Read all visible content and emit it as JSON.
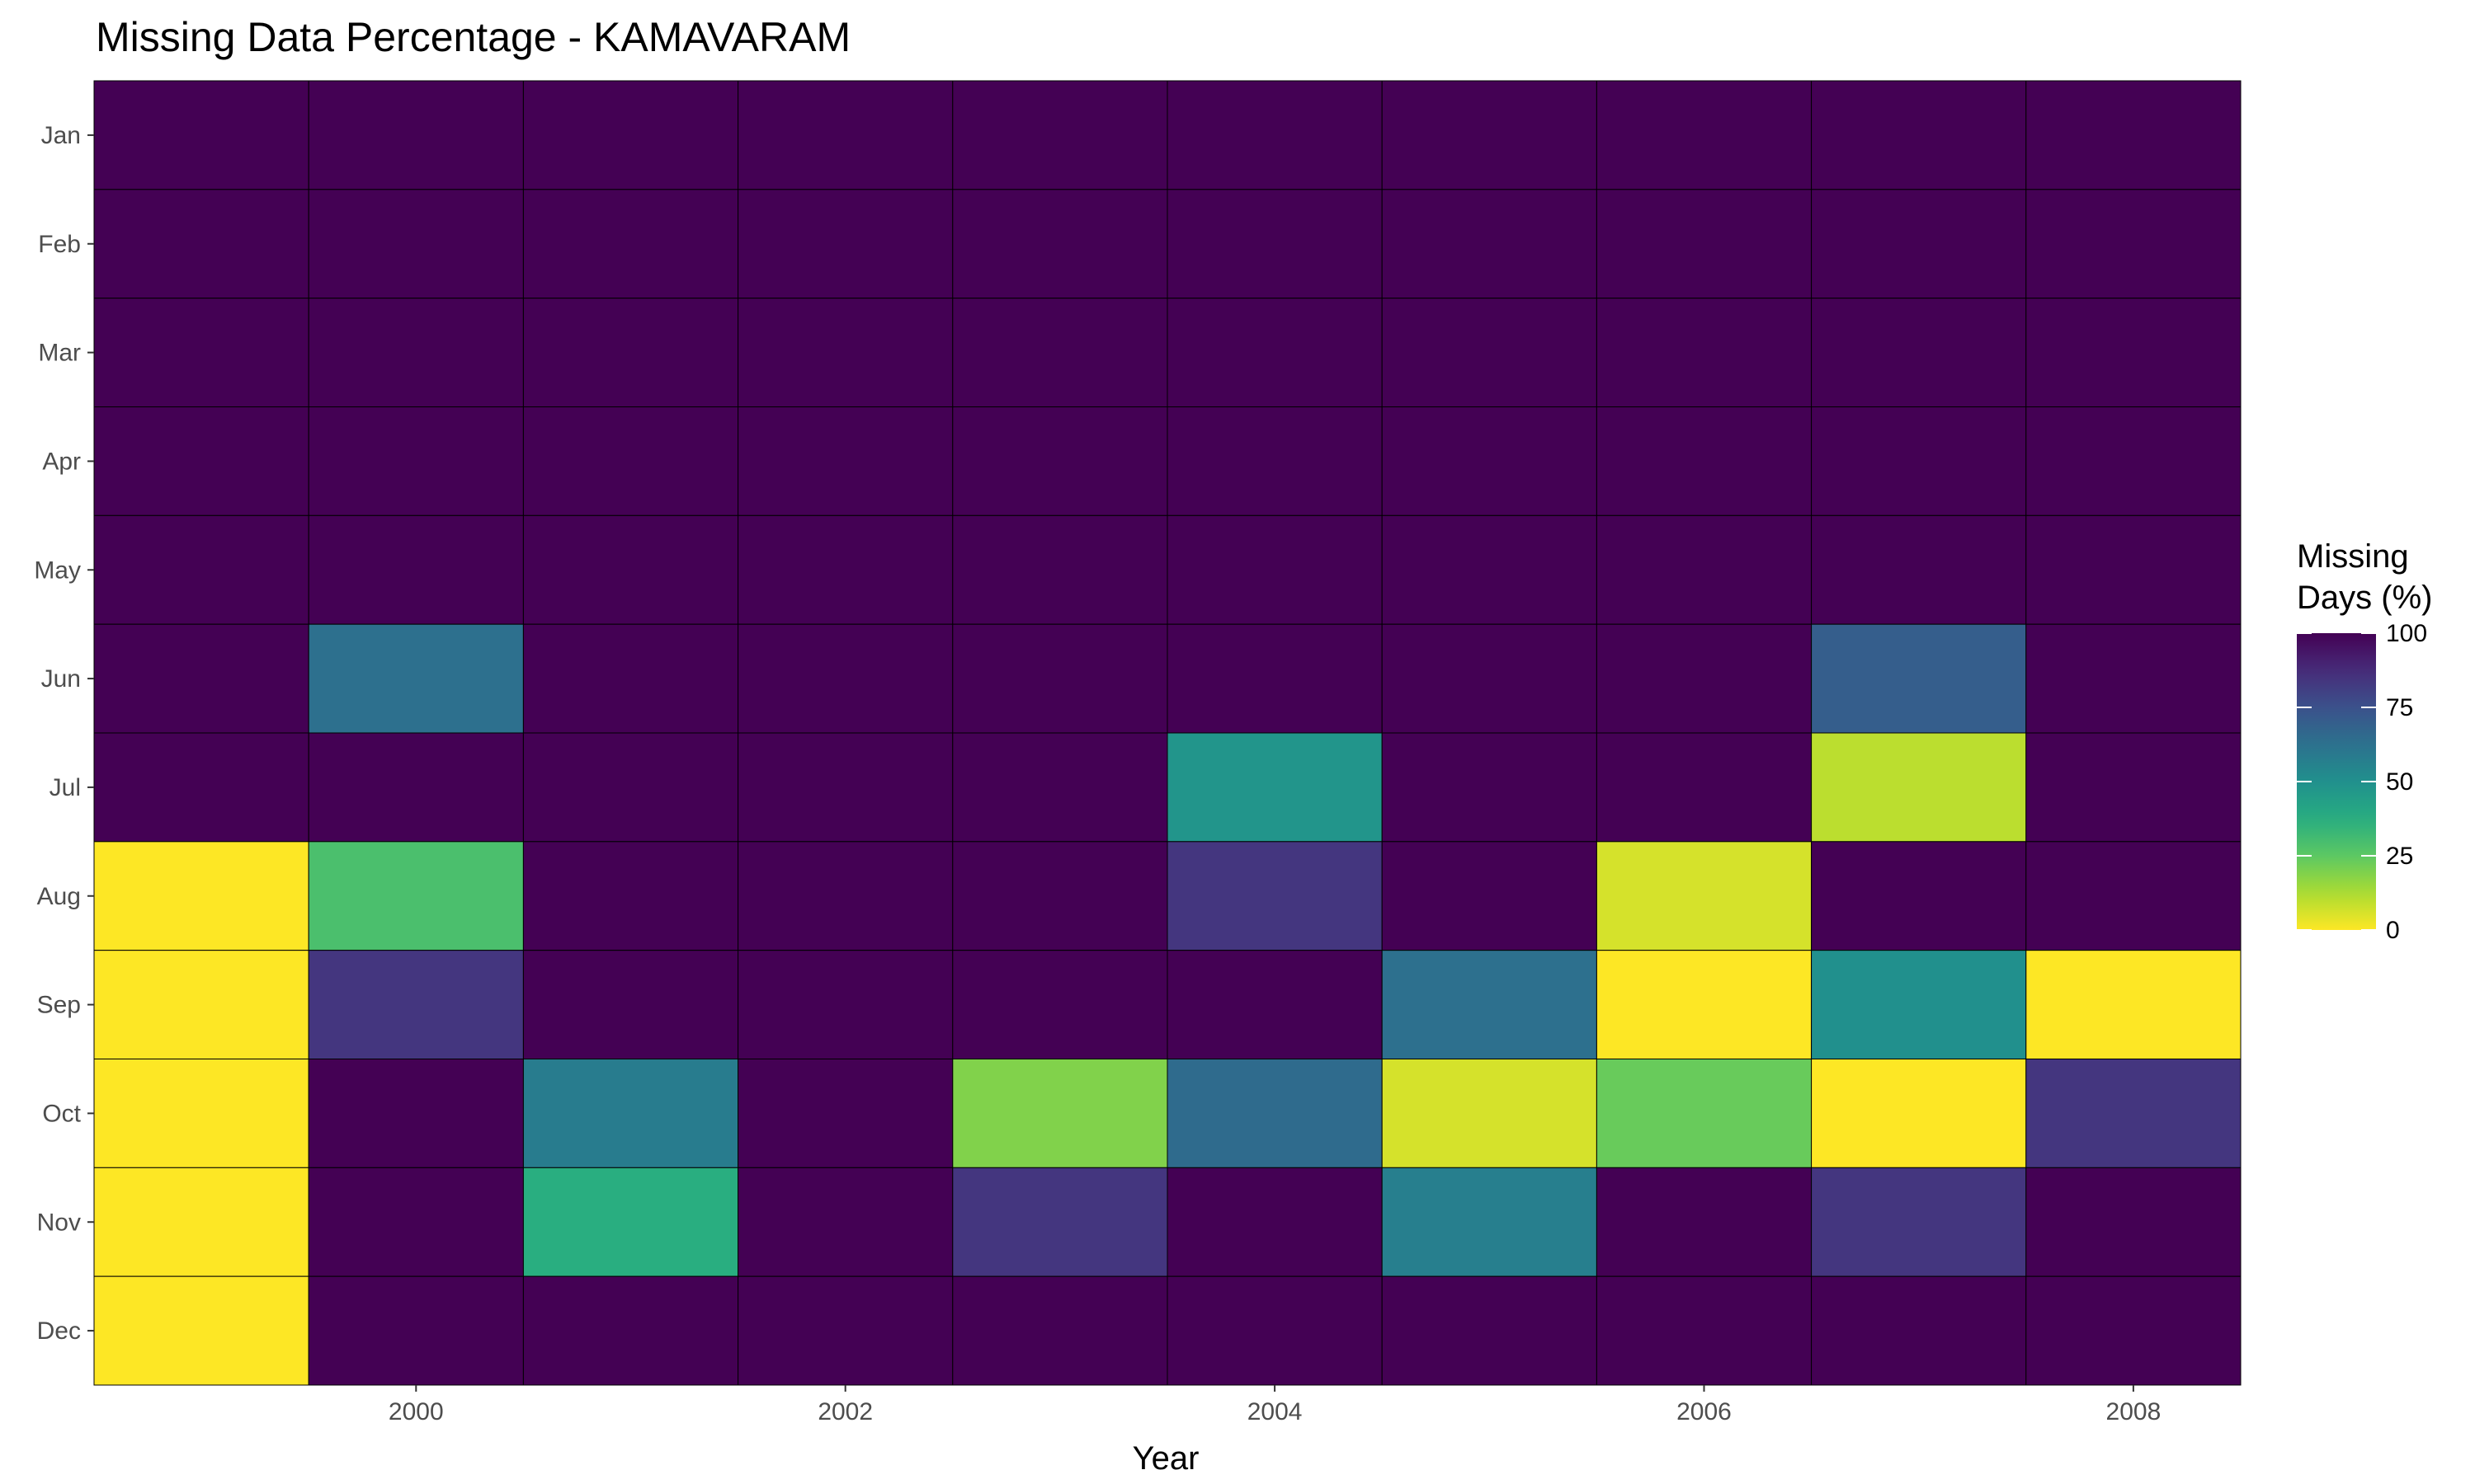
{
  "chart_data": {
    "type": "heatmap",
    "title": "Missing Data Percentage - KAMAVARAM",
    "xlabel": "Year",
    "ylabel": "",
    "x": [
      1999,
      2000,
      2001,
      2002,
      2003,
      2004,
      2005,
      2006,
      2007,
      2008
    ],
    "x_ticks": [
      2000,
      2002,
      2004,
      2006,
      2008
    ],
    "y": [
      "Jan",
      "Feb",
      "Mar",
      "Apr",
      "May",
      "Jun",
      "Jul",
      "Aug",
      "Sep",
      "Oct",
      "Nov",
      "Dec"
    ],
    "values": [
      [
        100,
        100,
        100,
        100,
        100,
        100,
        100,
        100,
        100,
        100
      ],
      [
        100,
        100,
        100,
        100,
        100,
        100,
        100,
        100,
        100,
        100
      ],
      [
        100,
        100,
        100,
        100,
        100,
        100,
        100,
        100,
        100,
        100
      ],
      [
        100,
        100,
        100,
        100,
        100,
        100,
        100,
        100,
        100,
        100
      ],
      [
        100,
        100,
        100,
        100,
        100,
        100,
        100,
        100,
        100,
        100
      ],
      [
        100,
        63,
        100,
        100,
        100,
        100,
        100,
        100,
        70,
        100
      ],
      [
        100,
        100,
        100,
        100,
        100,
        48,
        100,
        100,
        10,
        100
      ],
      [
        0,
        29,
        100,
        100,
        100,
        84,
        100,
        6,
        100,
        100
      ],
      [
        0,
        84,
        100,
        100,
        100,
        100,
        63,
        0,
        50,
        0
      ],
      [
        0,
        100,
        58,
        100,
        19,
        65,
        6,
        23,
        0,
        84
      ],
      [
        0,
        100,
        37,
        100,
        84,
        100,
        57,
        100,
        84,
        100
      ],
      [
        0,
        100,
        100,
        100,
        100,
        100,
        100,
        100,
        100,
        100
      ]
    ],
    "legend": {
      "title_lines": [
        "Missing",
        "Days (%)"
      ],
      "ticks": [
        0,
        25,
        50,
        75,
        100
      ],
      "placement": "right"
    },
    "scale": "viridis (reversed: 0 = yellow, 100 = dark purple)",
    "range": [
      0,
      100
    ],
    "grid": false
  }
}
